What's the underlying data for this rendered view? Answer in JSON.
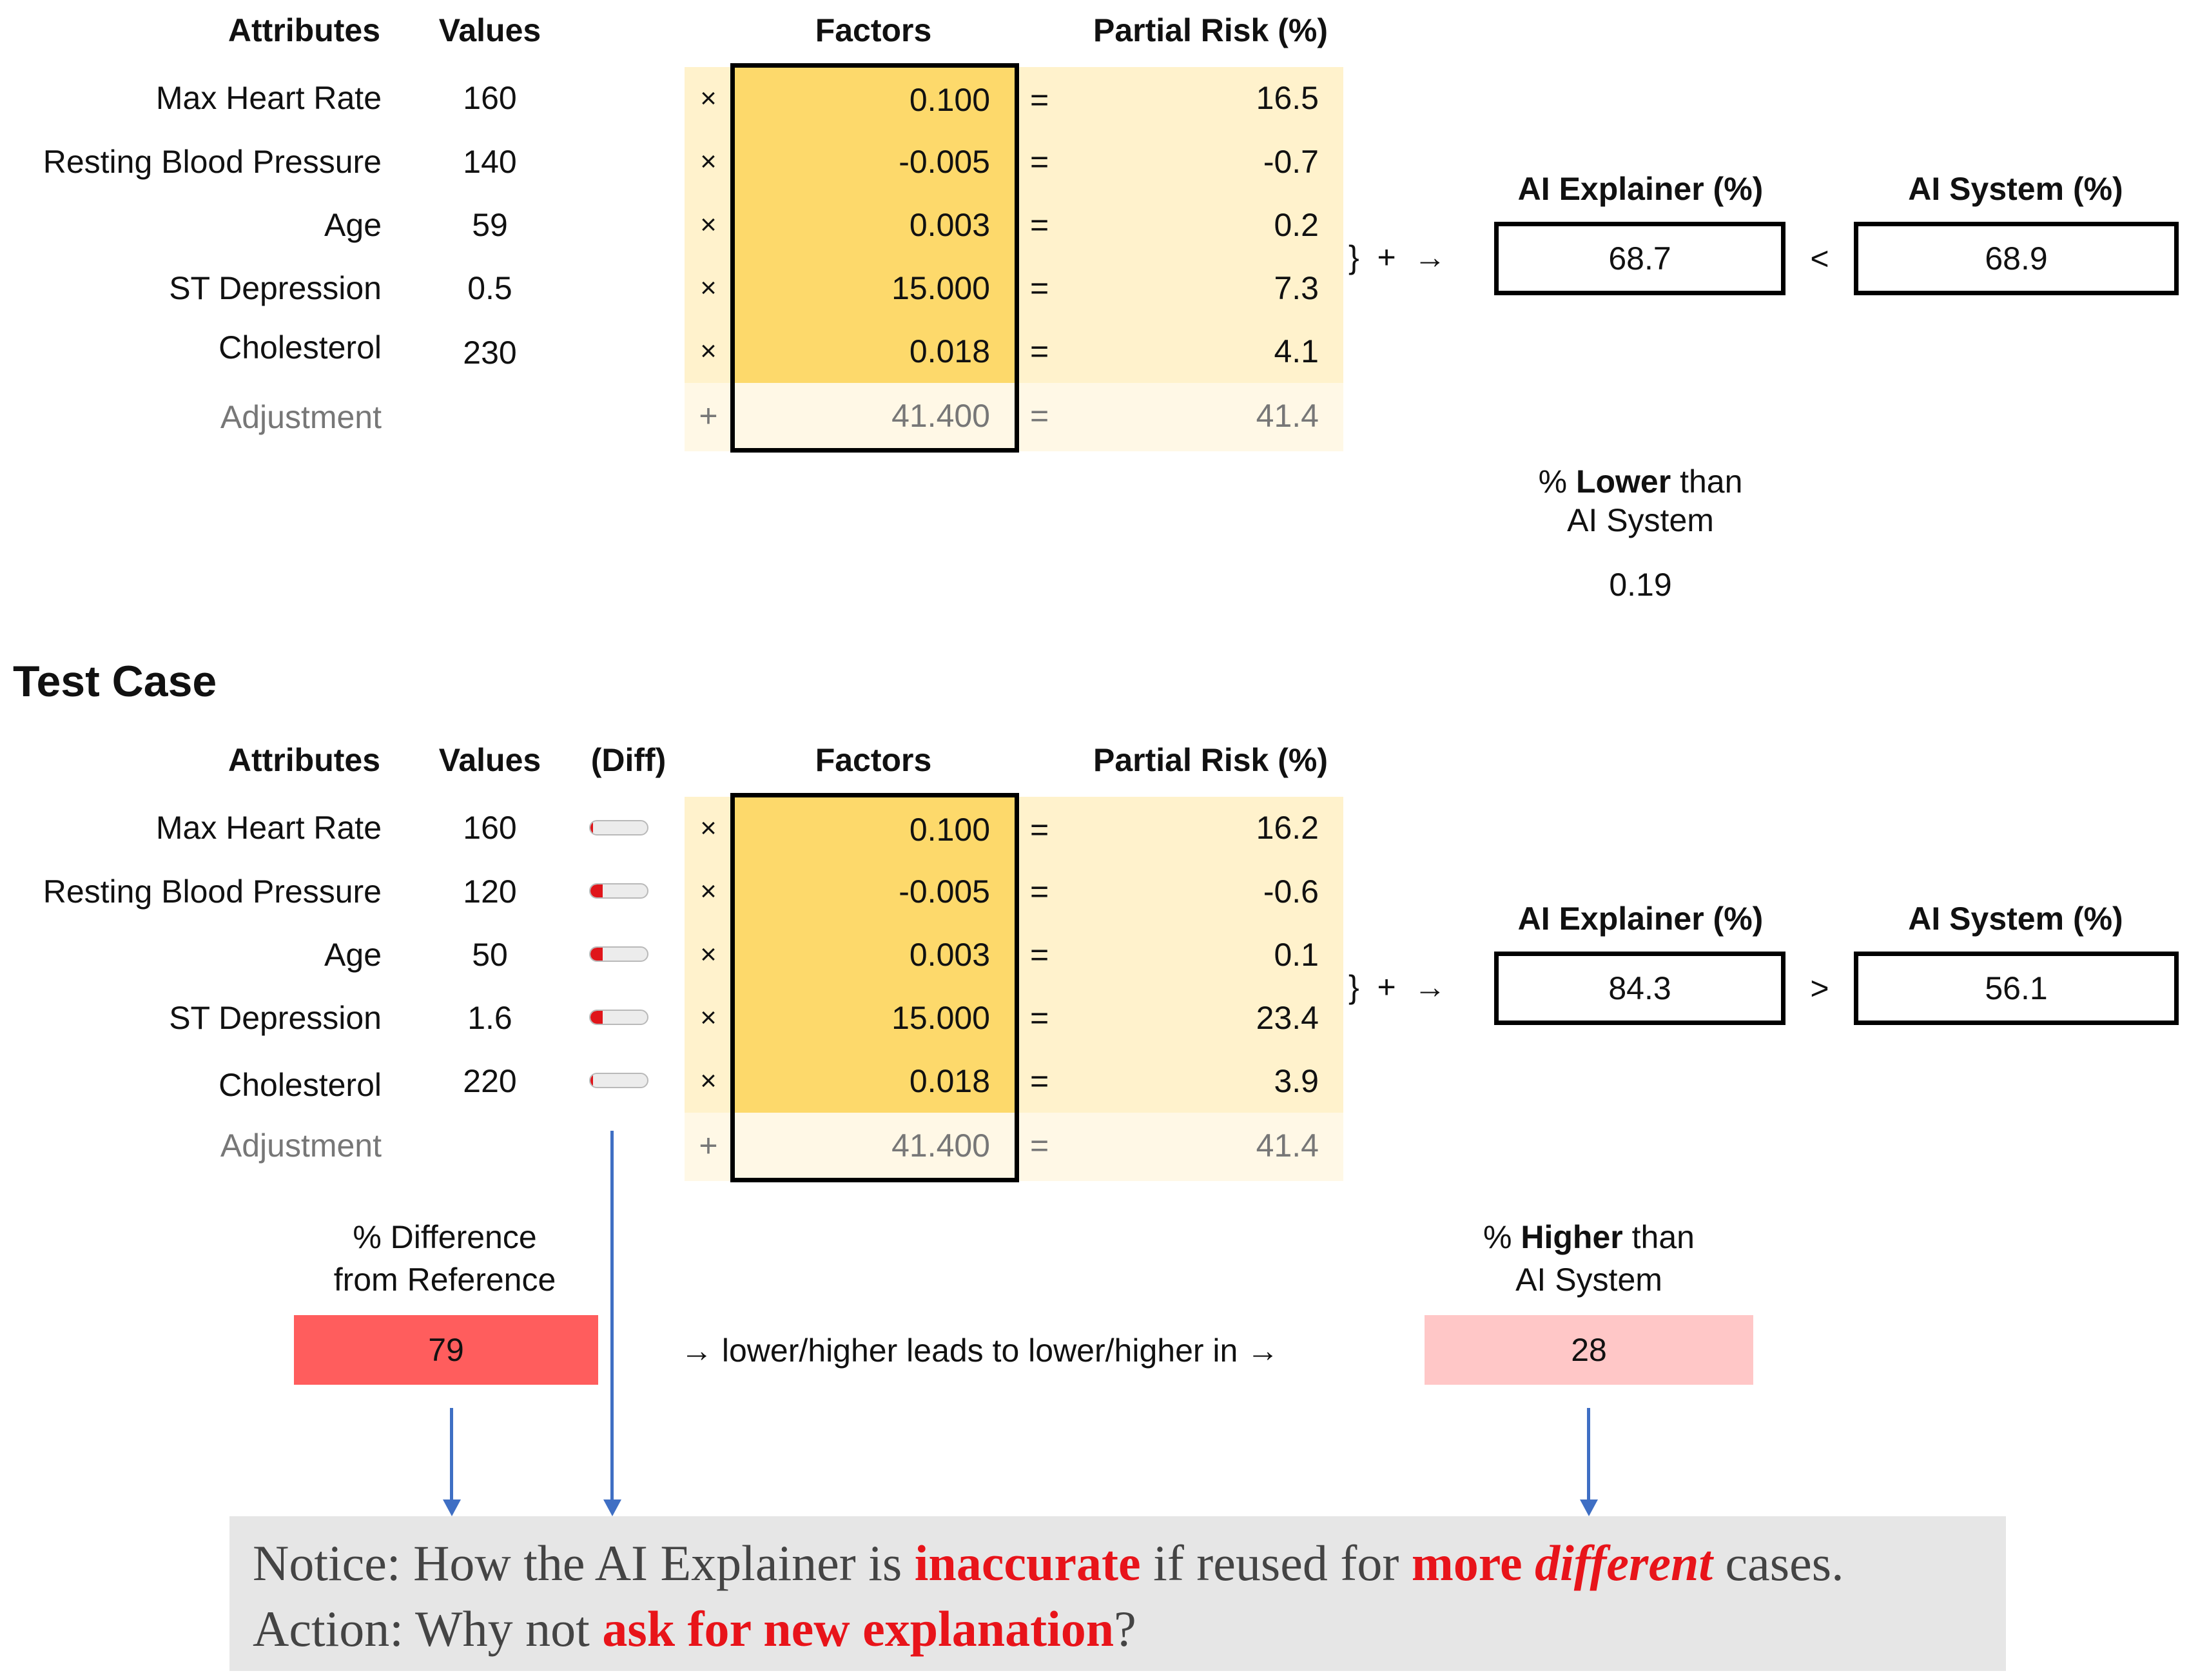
{
  "reference": {
    "headers": {
      "attributes": "Attributes",
      "values": "Values",
      "factors": "Factors",
      "partial_risk": "Partial Risk (%)"
    },
    "rows": [
      {
        "attribute": "Max Heart Rate",
        "value": "160",
        "op": "×",
        "factor": "0.100",
        "eq": "=",
        "partial": "16.5"
      },
      {
        "attribute": "Resting Blood Pressure",
        "value": "140",
        "op": "×",
        "factor": "-0.005",
        "eq": "=",
        "partial": "-0.7"
      },
      {
        "attribute": "Age",
        "value": "59",
        "op": "×",
        "factor": "0.003",
        "eq": "=",
        "partial": "0.2"
      },
      {
        "attribute": "ST Depression",
        "value": "0.5",
        "op": "×",
        "factor": "15.000",
        "eq": "=",
        "partial": "7.3"
      },
      {
        "attribute": "Cholesterol",
        "value": "230",
        "op": "×",
        "factor": "0.018",
        "eq": "=",
        "partial": "4.1"
      }
    ],
    "adjustment": {
      "label": "Adjustment",
      "op": "+",
      "factor": "41.400",
      "eq": "=",
      "partial": "41.4"
    },
    "sum_arrow": "}  +  →",
    "explainer_label": "AI Explainer (%)",
    "explainer_value": "68.7",
    "compare": "<",
    "system_label": "AI System (%)",
    "system_value": "68.9",
    "lower_prefix": "% ",
    "lower_bold": "Lower",
    "lower_suffix": " than",
    "lower_line2": "AI System",
    "lower_value": "0.19"
  },
  "test": {
    "title": "Test Case",
    "headers": {
      "attributes": "Attributes",
      "values": "Values",
      "diff": "(Diff)",
      "factors": "Factors",
      "partial_risk": "Partial Risk (%)"
    },
    "rows": [
      {
        "attribute": "Max Heart Rate",
        "value": "160",
        "diff_fraction": 0.04,
        "op": "×",
        "factor": "0.100",
        "eq": "=",
        "partial": "16.2"
      },
      {
        "attribute": "Resting Blood Pressure",
        "value": "120",
        "diff_fraction": 0.22,
        "op": "×",
        "factor": "-0.005",
        "eq": "=",
        "partial": "-0.6"
      },
      {
        "attribute": "Age",
        "value": "50",
        "diff_fraction": 0.22,
        "op": "×",
        "factor": "0.003",
        "eq": "=",
        "partial": "0.1"
      },
      {
        "attribute": "ST Depression",
        "value": "1.6",
        "diff_fraction": 0.22,
        "op": "×",
        "factor": "15.000",
        "eq": "=",
        "partial": "23.4"
      },
      {
        "attribute": "Cholesterol",
        "value": "220",
        "diff_fraction": 0.04,
        "op": "×",
        "factor": "0.018",
        "eq": "=",
        "partial": "3.9"
      }
    ],
    "adjustment": {
      "label": "Adjustment",
      "op": "+",
      "factor": "41.400",
      "eq": "=",
      "partial": "41.4"
    },
    "sum_arrow": "}  +  →",
    "explainer_label": "AI Explainer (%)",
    "explainer_value": "84.3",
    "compare": ">",
    "system_label": "AI System (%)",
    "system_value": "56.1",
    "diff_label_line1": "% Difference",
    "diff_label_line2": "from Reference",
    "diff_value": "79",
    "middle_text": "→ lower/higher leads to lower/higher in →",
    "higher_prefix": "% ",
    "higher_bold": "Higher",
    "higher_suffix": " than",
    "higher_line2": "AI System",
    "higher_value": "28"
  },
  "note": {
    "l1_a": "Notice: How the AI Explainer is ",
    "l1_b": "inaccurate",
    "l1_c": " if reused for ",
    "l1_d": "more ",
    "l1_e": "different",
    "l1_f": " cases.",
    "l2_a": "Action: Why not ",
    "l2_b": "ask for new explanation",
    "l2_c": "?"
  },
  "colors": {
    "gold": "#fdd96b",
    "light": "#fff2cc",
    "diff_red": "#ff5d5d",
    "higher_pink": "#ffc7c7",
    "arrow_blue": "#3f6fc4",
    "alert_red": "#e8141a"
  }
}
